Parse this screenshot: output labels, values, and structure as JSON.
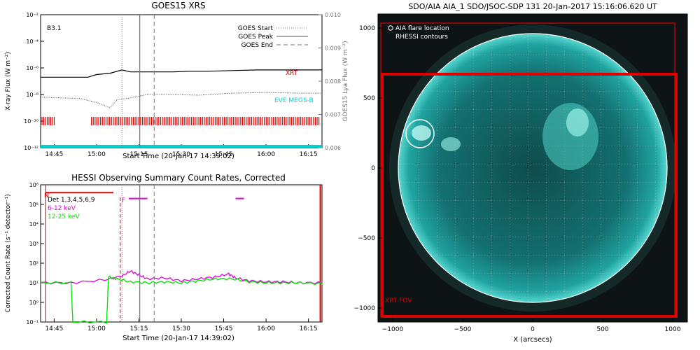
{
  "chart_data": [
    {
      "type": "line",
      "title": "GOES15 XRS",
      "xlabel": "Start Time (20-Jan-17 14:39:02)",
      "ylabel": "X-ray Flux (W m⁻²)",
      "ylabel_right": "GOES15 Lya Flux (W m⁻²)",
      "x_ticks": [
        "14:45",
        "15:00",
        "15:15",
        "15:30",
        "15:45",
        "16:00",
        "16:15"
      ],
      "y_ticks": [
        "10⁻²",
        "10⁻⁴",
        "10⁻⁶",
        "10⁻⁸",
        "10⁻¹⁰",
        "10⁻¹²"
      ],
      "y_ticks_right": [
        "0.010",
        "0.009",
        "0.008",
        "0.007",
        "0.006"
      ],
      "class_label": "B3.1",
      "legend": [
        "GOES Start",
        "GOES Peak",
        "GOES End"
      ],
      "series": [
        {
          "name": "XRT",
          "color": "#e00000",
          "x": [
            14.67,
            14.95,
            15.0,
            15.08,
            15.15,
            15.2,
            15.25,
            15.35,
            15.45,
            15.55,
            15.65,
            15.8,
            15.95,
            16.1,
            16.33
          ],
          "y": [
            -6.7,
            -6.7,
            -6.5,
            -6.4,
            -6.15,
            -6.3,
            -6.3,
            -6.3,
            -6.3,
            -6.25,
            -6.25,
            -6.2,
            -6.15,
            -6.15,
            -6.15
          ]
        },
        {
          "name": "EVE MEGS-B",
          "color": "#00d0d0",
          "x": [
            14.67,
            14.9,
            15.0,
            15.08,
            15.12,
            15.2,
            15.3,
            15.45,
            15.6,
            15.8,
            16.0,
            16.2,
            16.33
          ],
          "y": [
            -8.2,
            -8.3,
            -8.6,
            -9.0,
            -8.4,
            -8.25,
            -8.0,
            -8.0,
            -8.05,
            -7.9,
            -7.85,
            -7.9,
            -7.9
          ]
        }
      ],
      "goes_times": {
        "start": 15.15,
        "peak": 15.255,
        "end": 15.34
      },
      "xlim": [
        14.67,
        16.33
      ],
      "ylim": [
        -12,
        -2
      ]
    },
    {
      "type": "line",
      "title": "HESSI Observing Summary Count Rates, Corrected",
      "xlabel": "Start Time (20-Jan-17 14:39:02)",
      "ylabel": "Corrected Count Rate (s⁻¹ detector⁻¹)",
      "x_ticks": [
        "14:45",
        "15:00",
        "15:15",
        "15:30",
        "15:45",
        "16:00",
        "16:15"
      ],
      "y_ticks": [
        "10⁶",
        "10⁵",
        "10⁴",
        "10³",
        "10²",
        "10¹",
        "10⁰",
        "10⁻¹"
      ],
      "annotations": [
        "Det 1,3,4,5,6,9",
        "N",
        "F"
      ],
      "series": [
        {
          "name": "6-12 keV",
          "color": "#e000e0",
          "x": [
            14.67,
            14.85,
            14.85,
            15.05,
            15.15,
            15.2,
            15.25,
            15.3,
            15.4,
            15.5,
            15.6,
            15.7,
            15.78,
            15.82,
            15.9,
            16.0,
            16.1,
            16.2,
            16.33
          ],
          "y": [
            1.0,
            1.0,
            1.0,
            1.15,
            1.35,
            1.6,
            1.4,
            1.2,
            1.25,
            1.1,
            1.2,
            1.3,
            1.45,
            1.25,
            1.1,
            1.05,
            1.05,
            1.0,
            1.0
          ]
        },
        {
          "name": "12-25 keV",
          "color": "#00e000",
          "x": [
            14.67,
            14.85,
            14.86,
            15.06,
            15.07,
            15.12,
            15.2,
            15.3,
            15.4,
            15.5,
            15.6,
            15.7,
            15.8,
            15.9,
            16.0,
            16.1,
            16.2,
            16.33
          ],
          "y": [
            1.0,
            1.0,
            -1.0,
            -1.0,
            1.3,
            1.2,
            1.05,
            1.0,
            1.05,
            1.0,
            1.1,
            1.2,
            1.2,
            1.05,
            1.0,
            1.0,
            1.0,
            0.95
          ]
        }
      ],
      "xlim": [
        14.67,
        16.33
      ],
      "ylim": [
        -1,
        6
      ]
    },
    {
      "type": "other",
      "title": "SDO/AIA AIA_1 SDO/JSOC-SDP 131 20-Jan-2017 15:16:06.620 UT",
      "xlabel": "X (arcsecs)",
      "x_ticks": [
        "−1000",
        "−500",
        "0",
        "500",
        "1000"
      ],
      "y_ticks": [
        "1000",
        "500",
        "0",
        "−500",
        "−1000"
      ],
      "legend": [
        "AIA flare location",
        "RHESSI contours"
      ],
      "annotations": [
        "XRT FOV"
      ],
      "colors": {
        "disk": "#1fa3a0",
        "background": "#0e1416",
        "fov": "#e00000"
      },
      "flare_location": {
        "x": -770,
        "y": 240
      }
    }
  ]
}
